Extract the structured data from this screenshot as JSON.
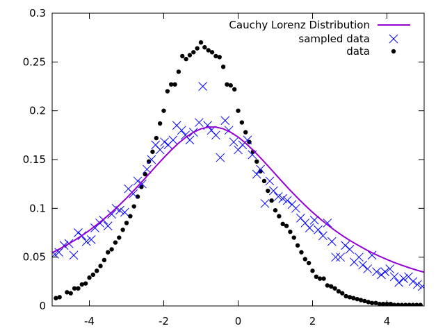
{
  "chart_data": {
    "type": "scatter",
    "title": "",
    "xlabel": "",
    "ylabel": "",
    "xlim": [
      -5,
      5
    ],
    "ylim": [
      0,
      0.3
    ],
    "grid": false,
    "legend_position": "top-right",
    "x_ticks": [
      -4,
      -2,
      0,
      2,
      4
    ],
    "x_tick_labels": [
      "-4",
      "-2",
      "0",
      "2",
      "4"
    ],
    "y_ticks": [
      0,
      0.05,
      0.1,
      0.15,
      0.2,
      0.25,
      0.3
    ],
    "y_tick_labels": [
      "0",
      "0.05",
      "0.1",
      "0.15",
      "0.2",
      "0.25",
      "0.3"
    ],
    "series": [
      {
        "name": "Cauchy Lorenz Distribution",
        "kind": "line",
        "color": "#9400d3",
        "x": [
          -5.0,
          -4.8,
          -4.6,
          -4.4,
          -4.2,
          -4.0,
          -3.8,
          -3.6,
          -3.4,
          -3.2,
          -3.0,
          -2.8,
          -2.6,
          -2.4,
          -2.2,
          -2.0,
          -1.8,
          -1.6,
          -1.4,
          -1.2,
          -1.0,
          -0.8,
          -0.6,
          -0.4,
          -0.2,
          0.0,
          0.2,
          0.4,
          0.6,
          0.8,
          1.0,
          1.2,
          1.4,
          1.6,
          1.8,
          2.0,
          2.2,
          2.4,
          2.6,
          2.8,
          3.0,
          3.2,
          3.4,
          3.6,
          3.8,
          4.0,
          4.2,
          4.4,
          4.6,
          4.8,
          5.0
        ],
        "y": [
          0.0545,
          0.0585,
          0.0627,
          0.0672,
          0.0721,
          0.0774,
          0.0832,
          0.0894,
          0.096,
          0.1031,
          0.1106,
          0.1185,
          0.1267,
          0.1351,
          0.1436,
          0.1518,
          0.1597,
          0.1669,
          0.1731,
          0.178,
          0.1815,
          0.1833,
          0.1833,
          0.1815,
          0.178,
          0.1731,
          0.1669,
          0.1597,
          0.1518,
          0.1436,
          0.1351,
          0.1267,
          0.1185,
          0.1106,
          0.1031,
          0.096,
          0.0894,
          0.0832,
          0.0774,
          0.0721,
          0.0672,
          0.0627,
          0.0585,
          0.0545,
          0.0509,
          0.0476,
          0.0445,
          0.0417,
          0.0391,
          0.0367,
          0.0345
        ]
      },
      {
        "name": "sampled data",
        "kind": "cross",
        "color": "#0000ff",
        "x": [
          -4.93,
          -4.82,
          -4.68,
          -4.55,
          -4.42,
          -4.3,
          -4.2,
          -4.08,
          -3.95,
          -3.85,
          -3.72,
          -3.62,
          -3.5,
          -3.4,
          -3.28,
          -3.18,
          -3.05,
          -2.95,
          -2.82,
          -2.7,
          -2.58,
          -2.45,
          -2.33,
          -2.22,
          -2.1,
          -1.98,
          -1.88,
          -1.75,
          -1.65,
          -1.52,
          -1.42,
          -1.3,
          -1.2,
          -1.05,
          -0.95,
          -0.82,
          -0.72,
          -0.6,
          -0.48,
          -0.35,
          -0.25,
          -0.12,
          0.0,
          0.12,
          0.25,
          0.38,
          0.5,
          0.6,
          0.72,
          0.85,
          0.95,
          1.08,
          1.2,
          1.32,
          1.45,
          1.55,
          1.68,
          1.8,
          1.92,
          2.05,
          2.15,
          2.28,
          2.4,
          2.52,
          2.62,
          2.75,
          2.88,
          3.0,
          3.12,
          3.25,
          3.35,
          3.48,
          3.6,
          3.72,
          3.85,
          3.95,
          4.08,
          4.2,
          4.32,
          4.45,
          4.58,
          4.7,
          4.82,
          4.95
        ],
        "y": [
          0.053,
          0.055,
          0.062,
          0.064,
          0.052,
          0.075,
          0.072,
          0.066,
          0.068,
          0.08,
          0.085,
          0.088,
          0.082,
          0.094,
          0.1,
          0.098,
          0.096,
          0.12,
          0.115,
          0.128,
          0.125,
          0.14,
          0.15,
          0.165,
          0.16,
          0.168,
          0.165,
          0.17,
          0.185,
          0.18,
          0.175,
          0.17,
          0.178,
          0.188,
          0.225,
          0.185,
          0.18,
          0.175,
          0.152,
          0.19,
          0.18,
          0.168,
          0.16,
          0.165,
          0.17,
          0.155,
          0.135,
          0.14,
          0.105,
          0.128,
          0.118,
          0.112,
          0.11,
          0.108,
          0.104,
          0.1,
          0.09,
          0.085,
          0.08,
          0.088,
          0.078,
          0.072,
          0.085,
          0.066,
          0.05,
          0.05,
          0.062,
          0.058,
          0.045,
          0.05,
          0.042,
          0.038,
          0.052,
          0.035,
          0.032,
          0.035,
          0.038,
          0.03,
          0.024,
          0.028,
          0.03,
          0.025,
          0.022,
          0.02
        ]
      },
      {
        "name": "data",
        "kind": "dot",
        "color": "#000000",
        "x": [
          -4.9,
          -4.8,
          -4.6,
          -4.5,
          -4.4,
          -4.3,
          -4.2,
          -4.1,
          -4.0,
          -3.9,
          -3.8,
          -3.7,
          -3.6,
          -3.5,
          -3.4,
          -3.3,
          -3.2,
          -3.1,
          -3.0,
          -2.9,
          -2.8,
          -2.7,
          -2.6,
          -2.5,
          -2.4,
          -2.3,
          -2.2,
          -2.1,
          -2.0,
          -1.9,
          -1.8,
          -1.7,
          -1.6,
          -1.5,
          -1.4,
          -1.3,
          -1.2,
          -1.1,
          -1.0,
          -0.9,
          -0.8,
          -0.7,
          -0.6,
          -0.5,
          -0.4,
          -0.3,
          -0.2,
          -0.1,
          0.0,
          0.1,
          0.2,
          0.3,
          0.4,
          0.5,
          0.6,
          0.7,
          0.8,
          0.9,
          1.0,
          1.1,
          1.2,
          1.3,
          1.4,
          1.5,
          1.6,
          1.7,
          1.8,
          1.9,
          2.0,
          2.1,
          2.2,
          2.3,
          2.4,
          2.5,
          2.6,
          2.7,
          2.8,
          2.9,
          3.0,
          3.1,
          3.2,
          3.3,
          3.4,
          3.5,
          3.6,
          3.7,
          3.8,
          3.9,
          4.0,
          4.1,
          4.2,
          4.3,
          4.4,
          4.5,
          4.6,
          4.7,
          4.8,
          4.9
        ],
        "y": [
          0.008,
          0.009,
          0.014,
          0.013,
          0.018,
          0.018,
          0.022,
          0.023,
          0.029,
          0.032,
          0.036,
          0.041,
          0.047,
          0.055,
          0.058,
          0.065,
          0.07,
          0.078,
          0.085,
          0.092,
          0.102,
          0.112,
          0.122,
          0.135,
          0.148,
          0.158,
          0.172,
          0.187,
          0.2,
          0.22,
          0.227,
          0.227,
          0.24,
          0.256,
          0.253,
          0.257,
          0.26,
          0.264,
          0.27,
          0.265,
          0.262,
          0.26,
          0.256,
          0.255,
          0.245,
          0.227,
          0.226,
          0.222,
          0.2,
          0.188,
          0.178,
          0.168,
          0.158,
          0.148,
          0.138,
          0.128,
          0.118,
          0.108,
          0.098,
          0.092,
          0.084,
          0.082,
          0.076,
          0.07,
          0.062,
          0.055,
          0.048,
          0.044,
          0.036,
          0.03,
          0.028,
          0.028,
          0.021,
          0.02,
          0.018,
          0.015,
          0.013,
          0.01,
          0.009,
          0.008,
          0.007,
          0.006,
          0.005,
          0.004,
          0.003,
          0.003,
          0.002,
          0.002,
          0.002,
          0.002,
          0.001,
          0.001,
          0.001,
          0.001,
          0.001,
          0.001,
          0.001,
          0.001
        ]
      }
    ]
  }
}
